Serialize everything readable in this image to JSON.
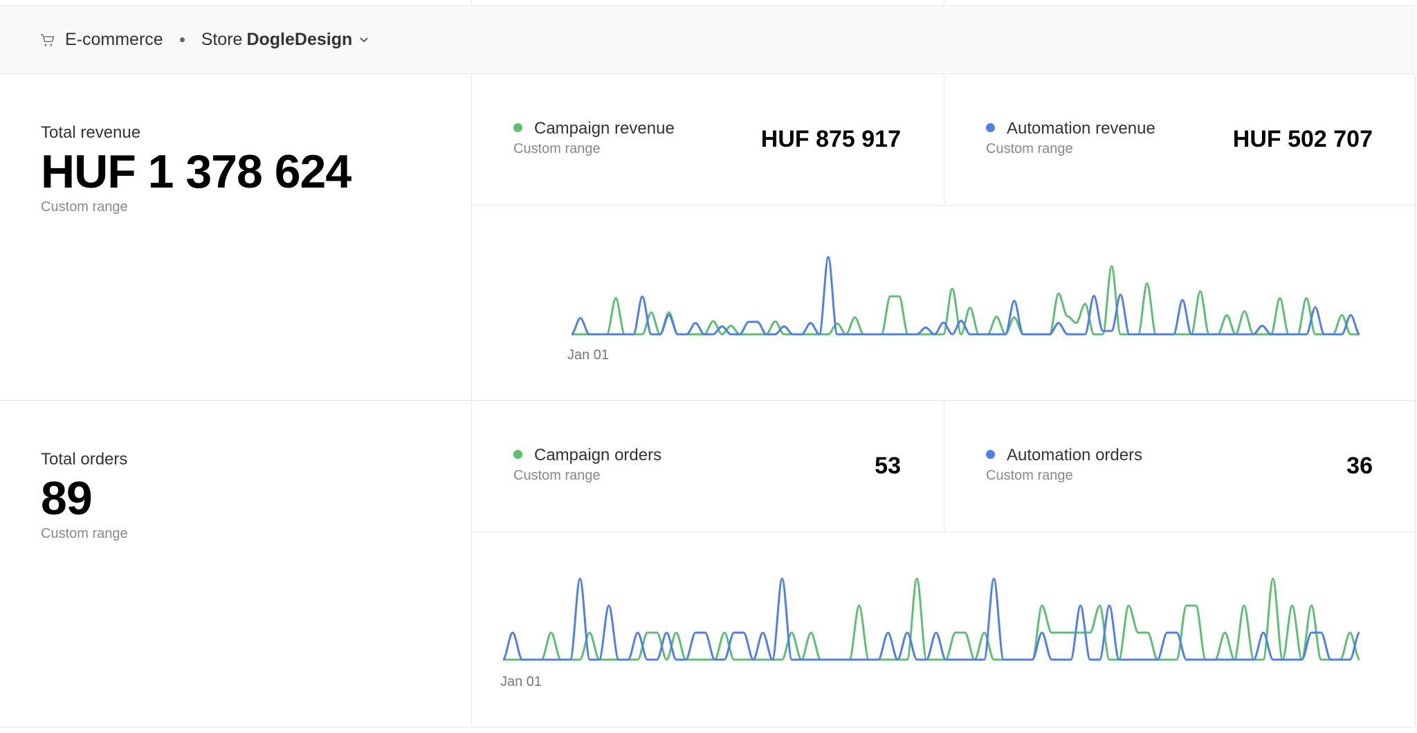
{
  "header": {
    "section_icon": "shopping-cart-icon",
    "section_label": "E-commerce",
    "store_prefix": "Store",
    "store_name": "DogleDesign",
    "dropdown_icon": "chevron-down-icon"
  },
  "colors": {
    "campaign": "#5cbf72",
    "automation": "#4f7fe8"
  },
  "revenue": {
    "total_label": "Total revenue",
    "total_value": "HUF 1 378 624",
    "total_range": "Custom range",
    "campaign": {
      "label": "Campaign revenue",
      "range": "Custom range",
      "value": "HUF 875 917"
    },
    "automation": {
      "label": "Automation revenue",
      "range": "Custom range",
      "value": "HUF 502 707"
    }
  },
  "orders": {
    "total_label": "Total orders",
    "total_value": "89",
    "total_range": "Custom range",
    "campaign": {
      "label": "Campaign orders",
      "range": "Custom range",
      "value": "53"
    },
    "automation": {
      "label": "Automation orders",
      "range": "Custom range",
      "value": "36"
    }
  },
  "chart_data": [
    {
      "type": "line",
      "x_start_label": "Jan 01",
      "x_unit": "day",
      "points": 90,
      "series": [
        {
          "name": "Campaign revenue",
          "color": "#5cbf72",
          "sparse_values": {
            "5": 41600,
            "9": 25200,
            "11": 25200,
            "16": 15100,
            "18": 9900,
            "23": 14800,
            "30": 12500,
            "32": 19500,
            "36": 43700,
            "37": 43700,
            "43": 52500,
            "45": 30700,
            "48": 20300,
            "50": 19500,
            "55": 46800,
            "56": 20800,
            "57": 13000,
            "58": 35100,
            "61": 78500,
            "65": 58500,
            "71": 49400,
            "74": 22100,
            "76": 26500,
            "80": 41600,
            "83": 41600,
            "87": 22100
          }
        },
        {
          "name": "Automation revenue",
          "color": "#4f7fe8",
          "sparse_values": {
            "1": 18700,
            "8": 43400,
            "11": 22100,
            "14": 13000,
            "17": 9100,
            "20": 14300,
            "21": 14300,
            "24": 9100,
            "27": 13000,
            "29": 88900,
            "40": 7800,
            "42": 13500,
            "44": 15600,
            "50": 38500,
            "55": 13000,
            "59": 44200,
            "60": 3900,
            "61": 3900,
            "62": 45500,
            "69": 39500,
            "78": 9900,
            "84": 31200,
            "88": 22100
          }
        }
      ],
      "ylim": [
        0,
        90000
      ],
      "grid": false
    },
    {
      "type": "line",
      "x_start_label": "Jan 01",
      "x_unit": "day",
      "points": 90,
      "series": [
        {
          "name": "Campaign orders",
          "color": "#5cbf72",
          "sparse_values": {
            "5": 1,
            "9": 1,
            "15": 1,
            "16": 1,
            "18": 1,
            "23": 1,
            "30": 1,
            "32": 1,
            "37": 2,
            "43": 3,
            "47": 1,
            "48": 1,
            "50": 1,
            "56": 2,
            "57": 1,
            "58": 1,
            "59": 1,
            "60": 1,
            "61": 1,
            "62": 2,
            "65": 2,
            "66": 1,
            "67": 1,
            "71": 2,
            "72": 2,
            "75": 1,
            "77": 2,
            "80": 3,
            "82": 2,
            "84": 2,
            "88": 1
          }
        },
        {
          "name": "Automation orders",
          "color": "#4f7fe8",
          "sparse_values": {
            "1": 1,
            "8": 3,
            "11": 2,
            "14": 1,
            "17": 1,
            "20": 1,
            "21": 1,
            "24": 1,
            "25": 1,
            "27": 1,
            "29": 3,
            "40": 1,
            "42": 1,
            "45": 1,
            "51": 3,
            "56": 1,
            "60": 2,
            "63": 2,
            "69": 1,
            "70": 1,
            "79": 1,
            "84": 1,
            "85": 1,
            "89": 1
          }
        }
      ],
      "ylim": [
        0,
        3
      ],
      "grid": false
    }
  ]
}
